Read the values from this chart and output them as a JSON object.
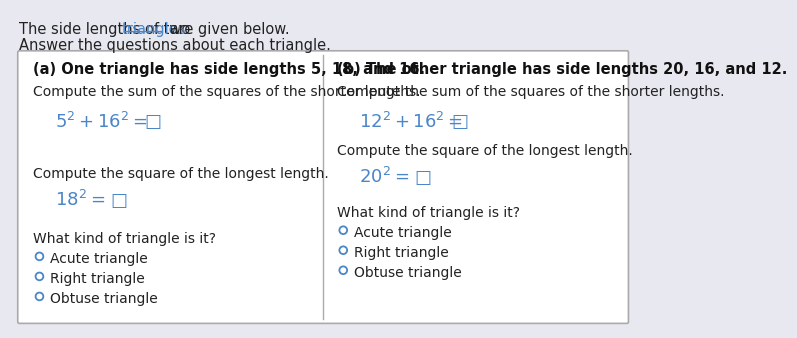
{
  "bg_color": "#e8e8f0",
  "header_part1": "The side lengths of two ",
  "header_link": "triangles",
  "header_part2": " are given below.",
  "subheader_text": "Answer the questions about each triangle.",
  "col_a_title": "(a) One triangle has side lengths 5, 18, and 16.",
  "col_b_title": "(b) The other triangle has side lengths 20, 16, and 12.",
  "col_a_inst1": "Compute the sum of the squares of the shorter lengths.",
  "col_b_inst1": "Compute the sum of the squares of the shorter lengths.",
  "col_a_inst2": "Compute the square of the longest length.",
  "col_b_inst2": "Compute the square of the longest length.",
  "col_a_inst3": "What kind of triangle is it?",
  "col_b_inst3": "What kind of triangle is it?",
  "radio_options": [
    "Acute triangle",
    "Right triangle",
    "Obtuse triangle"
  ],
  "text_color": "#222222",
  "link_color": "#4a86c8",
  "eq_color": "#4a86c8",
  "box_bg": "#ffffff",
  "box_border": "#aaaaaa",
  "radio_color": "#4a86c8",
  "divider_color": "#aaaaaa",
  "bold_color": "#111111"
}
